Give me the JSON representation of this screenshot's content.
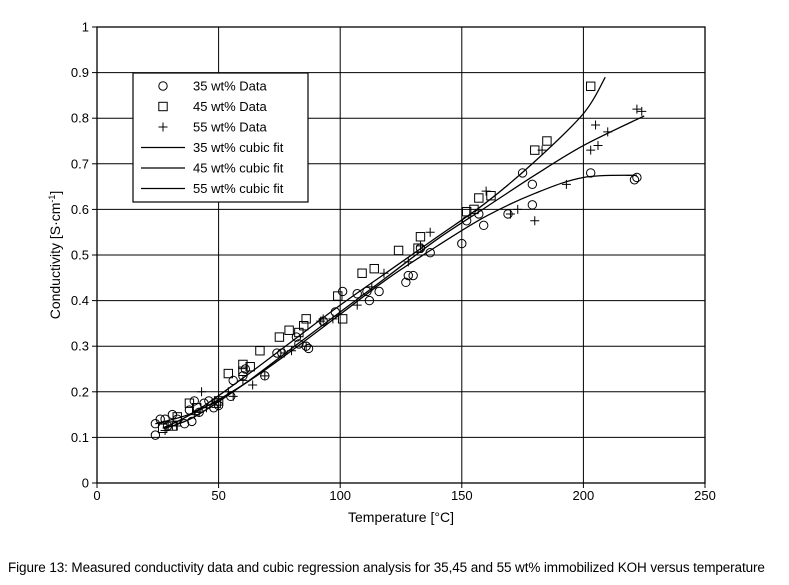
{
  "figure": {
    "caption": "Figure 13: Measured conductivity data and cubic regression analysis for 35,45 and 55 wt% immobilized KOH versus temperature"
  },
  "chart_data": {
    "type": "scatter",
    "title": "",
    "xlabel": "Temperature [°C]",
    "ylabel": "Conductivity [S·cm",
    "ylabel_sup": "-1",
    "ylabel_end": "]",
    "xlim": [
      0,
      250
    ],
    "ylim": [
      0,
      1
    ],
    "xticks": [
      0,
      50,
      100,
      150,
      200,
      250
    ],
    "yticks": [
      0,
      0.1,
      0.2,
      0.3,
      0.4,
      0.5,
      0.6,
      0.7,
      0.8,
      0.9,
      1
    ],
    "ytick_labels": [
      "0",
      "0.1",
      "0.2",
      "0.3",
      "0.4",
      "0.5",
      "0.6",
      "0.7",
      "0.8",
      "0.9",
      "1"
    ],
    "xtick_labels": [
      "0",
      "50",
      "100",
      "150",
      "200",
      "250"
    ],
    "grid": true,
    "legend_position": "top-left",
    "legend": [
      {
        "label": "35 wt% Data",
        "marker": "circle"
      },
      {
        "label": "45 wt% Data",
        "marker": "square"
      },
      {
        "label": "55 wt% Data",
        "marker": "plus"
      },
      {
        "label": "35 wt% cubic fit",
        "marker": "line"
      },
      {
        "label": "45 wt% cubic fit",
        "marker": "line"
      },
      {
        "label": "55 wt% cubic fit",
        "marker": "line"
      }
    ],
    "series": [
      {
        "name": "35 wt% Data",
        "marker": "circle",
        "points": [
          [
            24,
            0.105
          ],
          [
            24,
            0.13
          ],
          [
            26,
            0.14
          ],
          [
            28,
            0.14
          ],
          [
            29,
            0.125
          ],
          [
            31,
            0.15
          ],
          [
            33,
            0.14
          ],
          [
            36,
            0.13
          ],
          [
            38,
            0.16
          ],
          [
            39,
            0.135
          ],
          [
            40,
            0.18
          ],
          [
            42,
            0.155
          ],
          [
            44,
            0.175
          ],
          [
            46,
            0.18
          ],
          [
            48,
            0.165
          ],
          [
            50,
            0.17
          ],
          [
            55,
            0.19
          ],
          [
            56,
            0.225
          ],
          [
            60,
            0.235
          ],
          [
            61,
            0.25
          ],
          [
            69,
            0.235
          ],
          [
            74,
            0.285
          ],
          [
            76,
            0.285
          ],
          [
            82,
            0.32
          ],
          [
            83,
            0.305
          ],
          [
            86,
            0.3
          ],
          [
            87,
            0.295
          ],
          [
            93,
            0.355
          ],
          [
            98,
            0.375
          ],
          [
            101,
            0.42
          ],
          [
            107,
            0.415
          ],
          [
            111,
            0.42
          ],
          [
            112,
            0.4
          ],
          [
            116,
            0.42
          ],
          [
            127,
            0.44
          ],
          [
            128,
            0.455
          ],
          [
            130,
            0.455
          ],
          [
            133,
            0.515
          ],
          [
            137,
            0.505
          ],
          [
            150,
            0.525
          ],
          [
            152,
            0.575
          ],
          [
            157,
            0.59
          ],
          [
            159,
            0.565
          ],
          [
            169,
            0.59
          ],
          [
            175,
            0.68
          ],
          [
            179,
            0.61
          ],
          [
            179,
            0.655
          ],
          [
            203,
            0.68
          ],
          [
            221,
            0.665
          ],
          [
            222,
            0.67
          ]
        ]
      },
      {
        "name": "45 wt% Data",
        "marker": "square",
        "points": [
          [
            27,
            0.12
          ],
          [
            31,
            0.125
          ],
          [
            33,
            0.145
          ],
          [
            38,
            0.175
          ],
          [
            41,
            0.165
          ],
          [
            49,
            0.175
          ],
          [
            50,
            0.18
          ],
          [
            54,
            0.24
          ],
          [
            60,
            0.245
          ],
          [
            60,
            0.26
          ],
          [
            63,
            0.255
          ],
          [
            67,
            0.29
          ],
          [
            75,
            0.32
          ],
          [
            79,
            0.335
          ],
          [
            83,
            0.33
          ],
          [
            85,
            0.345
          ],
          [
            86,
            0.36
          ],
          [
            99,
            0.41
          ],
          [
            101,
            0.36
          ],
          [
            109,
            0.46
          ],
          [
            114,
            0.47
          ],
          [
            124,
            0.51
          ],
          [
            132,
            0.515
          ],
          [
            133,
            0.54
          ],
          [
            152,
            0.595
          ],
          [
            155,
            0.6
          ],
          [
            157,
            0.625
          ],
          [
            162,
            0.63
          ],
          [
            180,
            0.73
          ],
          [
            185,
            0.75
          ],
          [
            203,
            0.87
          ]
        ]
      },
      {
        "name": "55 wt% Data",
        "marker": "plus",
        "points": [
          [
            28,
            0.115
          ],
          [
            31,
            0.125
          ],
          [
            33,
            0.125
          ],
          [
            40,
            0.15
          ],
          [
            42,
            0.155
          ],
          [
            43,
            0.2
          ],
          [
            45,
            0.165
          ],
          [
            50,
            0.185
          ],
          [
            54,
            0.2
          ],
          [
            56,
            0.19
          ],
          [
            60,
            0.225
          ],
          [
            64,
            0.215
          ],
          [
            69,
            0.235
          ],
          [
            77,
            0.285
          ],
          [
            80,
            0.29
          ],
          [
            86,
            0.3
          ],
          [
            92,
            0.355
          ],
          [
            93,
            0.36
          ],
          [
            97,
            0.36
          ],
          [
            107,
            0.39
          ],
          [
            113,
            0.43
          ],
          [
            118,
            0.46
          ],
          [
            128,
            0.485
          ],
          [
            133,
            0.52
          ],
          [
            137,
            0.55
          ],
          [
            160,
            0.64
          ],
          [
            170,
            0.59
          ],
          [
            173,
            0.6
          ],
          [
            180,
            0.575
          ],
          [
            183,
            0.73
          ],
          [
            193,
            0.655
          ],
          [
            203,
            0.73
          ],
          [
            205,
            0.785
          ],
          [
            206,
            0.74
          ],
          [
            210,
            0.77
          ],
          [
            222,
            0.82
          ],
          [
            224,
            0.815
          ]
        ]
      }
    ],
    "fits": [
      {
        "name": "35 wt% cubic fit",
        "points": [
          [
            24,
            0.13
          ],
          [
            40,
            0.155
          ],
          [
            60,
            0.215
          ],
          [
            80,
            0.29
          ],
          [
            100,
            0.37
          ],
          [
            120,
            0.45
          ],
          [
            140,
            0.52
          ],
          [
            160,
            0.585
          ],
          [
            180,
            0.635
          ],
          [
            200,
            0.67
          ],
          [
            222,
            0.675
          ]
        ]
      },
      {
        "name": "45 wt% cubic fit",
        "points": [
          [
            27,
            0.12
          ],
          [
            40,
            0.155
          ],
          [
            60,
            0.23
          ],
          [
            80,
            0.31
          ],
          [
            100,
            0.39
          ],
          [
            120,
            0.465
          ],
          [
            140,
            0.54
          ],
          [
            160,
            0.615
          ],
          [
            180,
            0.705
          ],
          [
            200,
            0.81
          ],
          [
            209,
            0.89
          ]
        ]
      },
      {
        "name": "55 wt% cubic fit",
        "points": [
          [
            28,
            0.12
          ],
          [
            40,
            0.145
          ],
          [
            60,
            0.215
          ],
          [
            80,
            0.295
          ],
          [
            100,
            0.375
          ],
          [
            120,
            0.455
          ],
          [
            140,
            0.535
          ],
          [
            160,
            0.605
          ],
          [
            180,
            0.675
          ],
          [
            200,
            0.74
          ],
          [
            225,
            0.805
          ]
        ]
      }
    ]
  }
}
